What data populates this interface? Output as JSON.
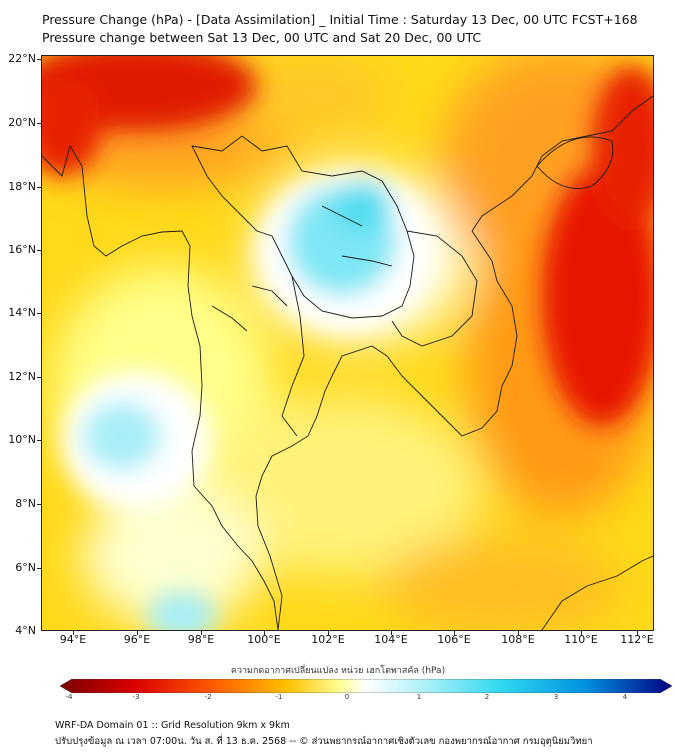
{
  "title": {
    "line1": "Pressure Change (hPa) - [Data Assimilation] _ Initial Time : Saturday 13 Dec, 00 UTC FCST+168",
    "line2": "Pressure change between Sat 13 Dec, 00 UTC and Sat 20 Dec, 00 UTC"
  },
  "map": {
    "lat_labels": [
      "22°N",
      "20°N",
      "18°N",
      "16°N",
      "14°N",
      "12°N",
      "10°N",
      "8°N",
      "6°N",
      "4°N"
    ],
    "lon_labels": [
      "94°E",
      "96°E",
      "98°E",
      "100°E",
      "102°E",
      "104°E",
      "106°E",
      "108°E",
      "110°E",
      "112°E"
    ]
  },
  "colorbar": {
    "label": "ความกดอากาศเปลี่ยนแปลง หน่วย เฮกโตพาสคัล (hPa)",
    "ticks": [
      "-4",
      "-3",
      "-2",
      "-1",
      "0",
      "1",
      "2",
      "3",
      "4"
    ],
    "colors": {
      "neg4": "#7a0000",
      "neg3": "#d90000",
      "neg2": "#ff5a00",
      "neg1": "#ffc000",
      "near0": "#ffff99",
      "zero": "#ffffff",
      "pos1": "#a8f0f8",
      "pos2": "#30d8f0",
      "pos3": "#0090e0",
      "pos4": "#000080"
    }
  },
  "footer": {
    "line1": "WRF-DA Domain 01 :: Grid Resolution 9km x 9km",
    "line2": "ปรับปรุงข้อมูล ณ เวลา 07:00น. วัน ส. ที่ 13 ธ.ค. 2568 -- © ส่วนพยากรณ์อากาศเชิงตัวเลข กองพยากรณ์อากาศ กรมอุตุนิยมวิทยา"
  }
}
